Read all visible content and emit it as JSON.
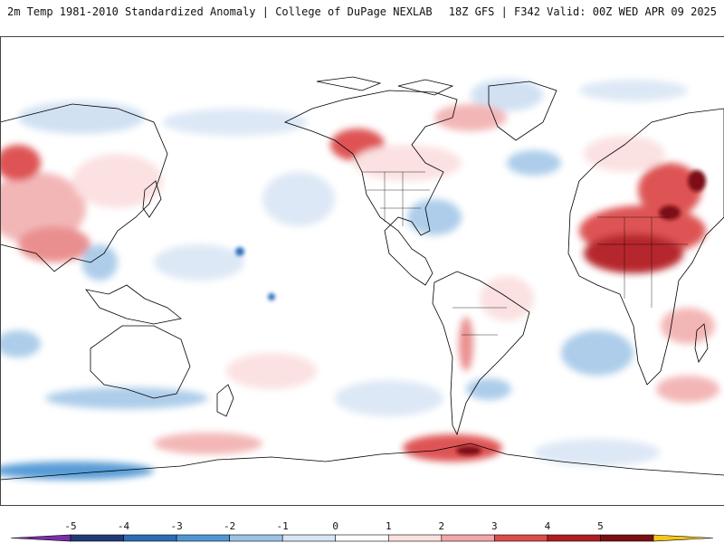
{
  "header": {
    "title_left": "2m Temp 1981-2010 Standardized Anomaly | College of DuPage NEXLAB",
    "title_right": "18Z GFS | F342 Valid: 00Z WED APR 09 2025"
  },
  "map": {
    "projection": "equirectangular, Pacific-centered",
    "colors": {
      "land_outline": "#000000",
      "ocean": "#ffffff"
    }
  },
  "colorbar": {
    "tick_labels": [
      "-5",
      "-4",
      "-3",
      "-2",
      "-1",
      "0",
      "1",
      "2",
      "3",
      "4",
      "5"
    ],
    "segments": [
      {
        "color": "#7a2fa8"
      },
      {
        "color": "#1f3b77"
      },
      {
        "color": "#2a6db7"
      },
      {
        "color": "#4f97d4"
      },
      {
        "color": "#9cc3e6"
      },
      {
        "color": "#d7e5f4"
      },
      {
        "color": "#ffffff"
      },
      {
        "color": "#fbe0e0"
      },
      {
        "color": "#f3a6a6"
      },
      {
        "color": "#dd4b4b"
      },
      {
        "color": "#b21c23"
      },
      {
        "color": "#7d0d12"
      },
      {
        "color": "#f6c51a"
      }
    ]
  }
}
